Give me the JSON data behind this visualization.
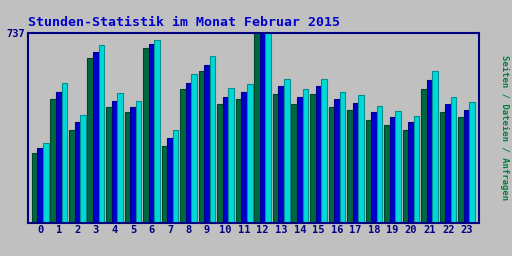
{
  "title": "Stunden-Statistik im Monat Februar 2015",
  "title_color": "#0000cc",
  "right_label": "Seiten / Dateien / Anfragen",
  "right_label_color": "#008040",
  "hours": [
    0,
    1,
    2,
    3,
    4,
    5,
    6,
    7,
    8,
    9,
    10,
    11,
    12,
    13,
    14,
    15,
    16,
    17,
    18,
    19,
    20,
    21,
    22,
    23
  ],
  "seiten": [
    270,
    480,
    360,
    640,
    450,
    430,
    680,
    300,
    520,
    590,
    460,
    480,
    737,
    500,
    460,
    500,
    450,
    440,
    400,
    380,
    360,
    520,
    430,
    410
  ],
  "dateien": [
    290,
    510,
    390,
    665,
    475,
    450,
    695,
    330,
    545,
    615,
    490,
    510,
    737,
    530,
    490,
    530,
    480,
    465,
    430,
    410,
    390,
    555,
    460,
    440
  ],
  "anfragen": [
    310,
    545,
    420,
    690,
    505,
    475,
    710,
    360,
    580,
    650,
    525,
    540,
    737,
    560,
    520,
    560,
    510,
    495,
    455,
    435,
    415,
    590,
    490,
    470
  ],
  "color_seiten": "#006840",
  "color_dateien": "#0000cc",
  "color_anfragen": "#00d8d8",
  "bg_color": "#c0c0c0",
  "plot_bg": "#c0c0c0",
  "ymax": 737,
  "bar_width": 0.3
}
